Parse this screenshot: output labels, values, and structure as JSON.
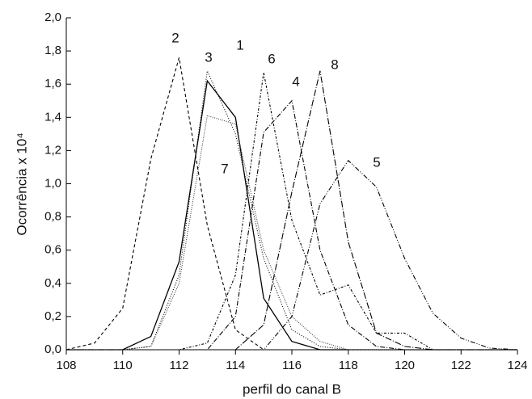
{
  "chart_data": {
    "type": "line",
    "xlabel": "perfil do canal B",
    "ylabel": "Ocorrência x 10⁴",
    "x": [
      108,
      109,
      110,
      111,
      112,
      113,
      114,
      115,
      116,
      117,
      118,
      119,
      120,
      121,
      122,
      123,
      124
    ],
    "xlim": [
      108,
      124
    ],
    "xticks": [
      108,
      110,
      112,
      114,
      116,
      118,
      120,
      122,
      124
    ],
    "ylim": [
      0,
      2.0
    ],
    "yticks": [
      {
        "value": 0,
        "label": "0,0"
      },
      {
        "value": 0.2,
        "label": "0,2"
      },
      {
        "value": 0.4,
        "label": "0,4"
      },
      {
        "value": 0.6,
        "label": "0,6"
      },
      {
        "value": 0.8,
        "label": "0,8"
      },
      {
        "value": 1.0,
        "label": "1,0"
      },
      {
        "value": 1.2,
        "label": "1,2"
      },
      {
        "value": 1.4,
        "label": "1,4"
      },
      {
        "value": 1.6,
        "label": "1,6"
      },
      {
        "value": 1.8,
        "label": "1,8"
      },
      {
        "value": 2.0,
        "label": "2,0"
      }
    ],
    "series": [
      {
        "name": "1",
        "color": "#000000",
        "dash": "none",
        "values": [
          0,
          0,
          0,
          0.08,
          0.53,
          1.62,
          1.4,
          0.31,
          0.05,
          0,
          0,
          0,
          0,
          0,
          0,
          0,
          0
        ]
      },
      {
        "name": "2",
        "color": "#000000",
        "dash": "4,3",
        "values": [
          0,
          0.04,
          0.25,
          1.15,
          1.76,
          0.75,
          0.12,
          0,
          0,
          0,
          0,
          0,
          0,
          0,
          0,
          0,
          0
        ]
      },
      {
        "name": "3",
        "color": "#000000",
        "dash": "1,2",
        "values": [
          0,
          0,
          0,
          0.02,
          0.45,
          1.68,
          1.3,
          0.55,
          0.12,
          0.02,
          0,
          0,
          0,
          0,
          0,
          0,
          0
        ]
      },
      {
        "name": "4",
        "color": "#000000",
        "dash": "6,2,1,2",
        "values": [
          0,
          0,
          0,
          0,
          0,
          0,
          0.2,
          1.31,
          1.5,
          0.6,
          0.15,
          0.02,
          0,
          0,
          0,
          0,
          0
        ]
      },
      {
        "name": "5",
        "color": "#000000",
        "dash": "6,2,1,2,1,2",
        "values": [
          0,
          0,
          0,
          0,
          0,
          0,
          0,
          0,
          0.2,
          0.88,
          1.14,
          0.98,
          0.55,
          0.22,
          0.07,
          0.01,
          0
        ]
      },
      {
        "name": "6",
        "color": "#000000",
        "dash": "3,2,1,2",
        "values": [
          0,
          0,
          0,
          0,
          0,
          0.04,
          0.45,
          1.67,
          0.78,
          0.33,
          0.39,
          0.1,
          0.1,
          0,
          0,
          0,
          0
        ]
      },
      {
        "name": "7",
        "color": "#444444",
        "dash": "1,1.5",
        "values": [
          0,
          0,
          0,
          0.02,
          0.4,
          1.41,
          1.36,
          0.6,
          0.2,
          0.05,
          0,
          0,
          0,
          0,
          0,
          0,
          0
        ]
      },
      {
        "name": "8",
        "color": "#000000",
        "dash": "8,2,1,2",
        "values": [
          0,
          0,
          0,
          0,
          0,
          0,
          0,
          0.15,
          0.95,
          1.68,
          0.65,
          0.1,
          0.02,
          0,
          0,
          0,
          0
        ]
      }
    ]
  }
}
